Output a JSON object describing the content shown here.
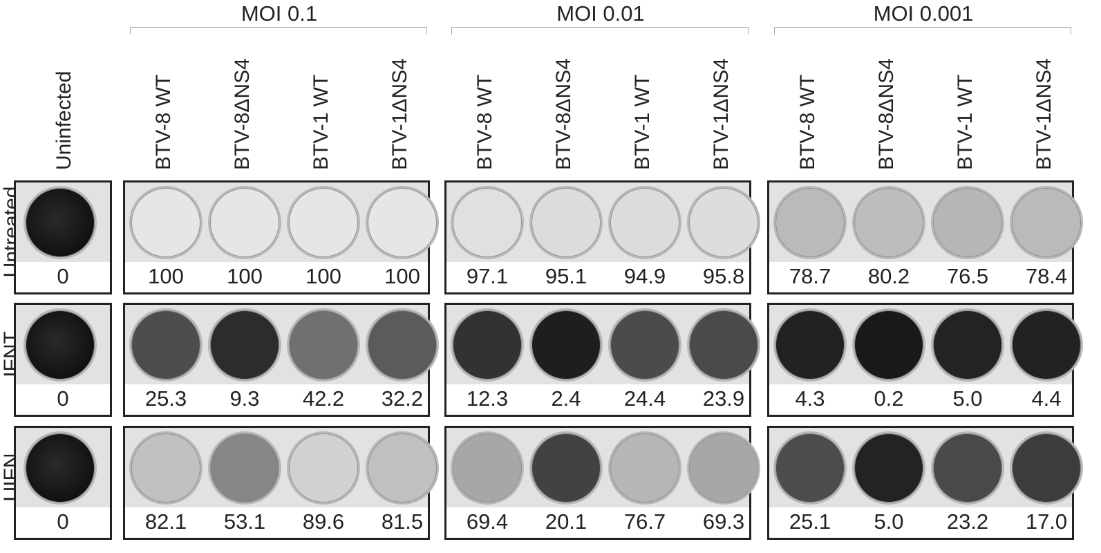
{
  "moi_groups": [
    {
      "label": "MOI 0.1"
    },
    {
      "label": "MOI 0.01"
    },
    {
      "label": "MOI 0.001"
    }
  ],
  "uninfected_label": "Uninfected",
  "virus_labels": [
    "BTV-8 WT",
    "BTV-8ΔNS4",
    "BTV-1 WT",
    "BTV-1ΔNS4"
  ],
  "rows": [
    {
      "label": "Untreated",
      "uninfected_value": "0",
      "values": [
        [
          "100",
          "100",
          "100",
          "100"
        ],
        [
          "97.1",
          "95.1",
          "94.9",
          "95.8"
        ],
        [
          "78.7",
          "80.2",
          "76.5",
          "78.4"
        ]
      ]
    },
    {
      "label": "IFNT",
      "uninfected_value": "0",
      "values": [
        [
          "25.3",
          "9.3",
          "42.2",
          "32.2"
        ],
        [
          "12.3",
          "2.4",
          "24.4",
          "23.9"
        ],
        [
          "4.3",
          "0.2",
          "5.0",
          "4.4"
        ]
      ]
    },
    {
      "label": "UIFN",
      "uninfected_value": "0",
      "values": [
        [
          "82.1",
          "53.1",
          "89.6",
          "81.5"
        ],
        [
          "69.4",
          "20.1",
          "76.7",
          "69.3"
        ],
        [
          "25.1",
          "5.0",
          "23.2",
          "17.0"
        ]
      ]
    }
  ],
  "colors": {
    "frame": "#222222",
    "bracket": "#aaaaaa",
    "well_border": "#b8b8b8"
  }
}
